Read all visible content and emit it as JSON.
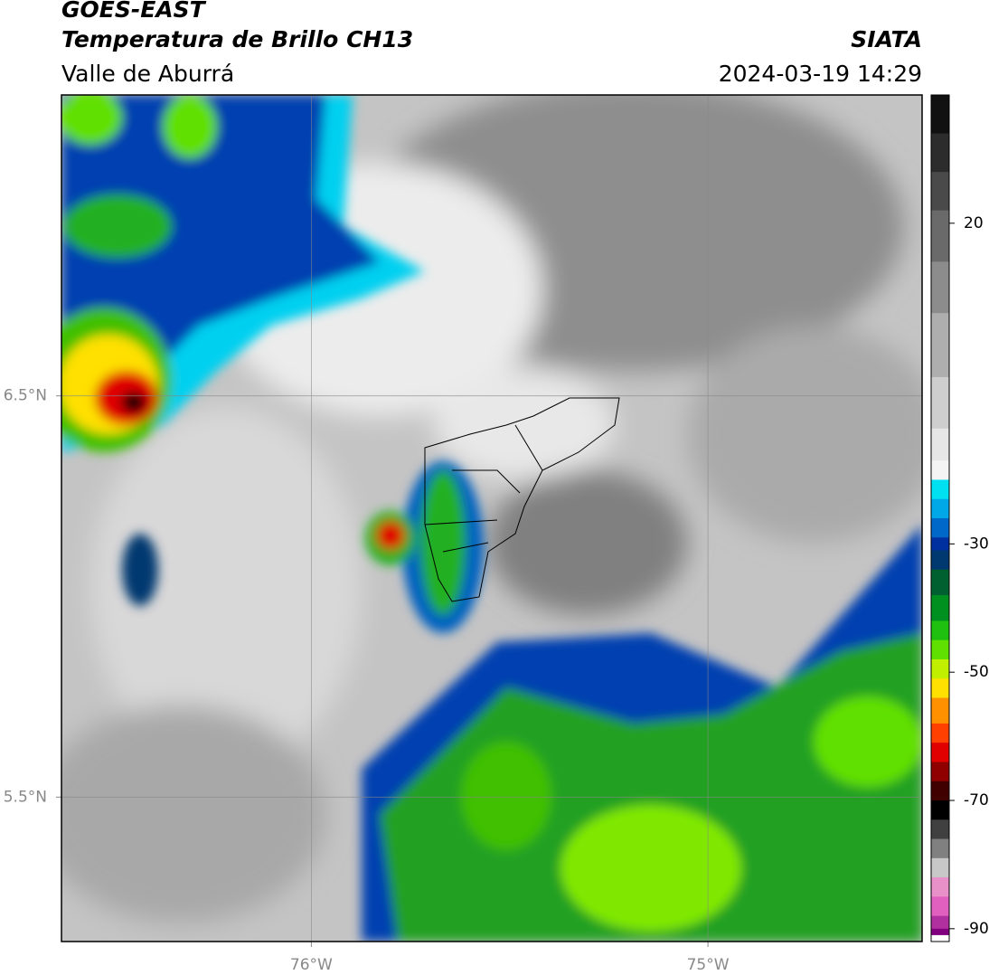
{
  "header": {
    "title": "GOES-EAST",
    "subtitle": "Temperatura de Brillo CH13",
    "region": "Valle de Aburrá",
    "source": "SIATA",
    "datetime": "2024-03-19 14:29"
  },
  "map": {
    "type": "map",
    "xlim": [
      -76.63,
      -74.46
    ],
    "ylim": [
      5.14,
      7.25
    ],
    "xticks": [
      {
        "value": -76,
        "label": "76°W"
      },
      {
        "value": -75,
        "label": "75°W"
      }
    ],
    "yticks": [
      {
        "value": 6.5,
        "label": "6.5°N"
      },
      {
        "value": 5.5,
        "label": "5.5°N"
      }
    ],
    "grid": true
  },
  "colorbar": {
    "lim": [
      -92,
      40
    ],
    "ticks": [
      20,
      -30,
      -50,
      -70,
      -90
    ],
    "colors": [
      {
        "value": 40,
        "color": "#111111"
      },
      {
        "value": 34,
        "color": "#2c2c2c"
      },
      {
        "value": 28,
        "color": "#4a4a4a"
      },
      {
        "value": 22,
        "color": "#6a6a6a"
      },
      {
        "value": 14,
        "color": "#8c8c8c"
      },
      {
        "value": 6,
        "color": "#aeaeae"
      },
      {
        "value": -4,
        "color": "#cecece"
      },
      {
        "value": -12,
        "color": "#e6e6e6"
      },
      {
        "value": -17,
        "color": "#f4f4f4"
      },
      {
        "value": -20,
        "color": "#00e0f0"
      },
      {
        "value": -23,
        "color": "#00a8e8"
      },
      {
        "value": -26,
        "color": "#0068c8"
      },
      {
        "value": -29,
        "color": "#0030a0"
      },
      {
        "value": -31,
        "color": "#003870"
      },
      {
        "value": -34,
        "color": "#006030"
      },
      {
        "value": -38,
        "color": "#009020"
      },
      {
        "value": -42,
        "color": "#20c010"
      },
      {
        "value": -45,
        "color": "#60e000"
      },
      {
        "value": -48,
        "color": "#c0f000"
      },
      {
        "value": -51,
        "color": "#ffe000"
      },
      {
        "value": -54,
        "color": "#ff9000"
      },
      {
        "value": -58,
        "color": "#ff4000"
      },
      {
        "value": -61,
        "color": "#e00000"
      },
      {
        "value": -64,
        "color": "#900000"
      },
      {
        "value": -67,
        "color": "#400000"
      },
      {
        "value": -70,
        "color": "#000000"
      },
      {
        "value": -73,
        "color": "#404040"
      },
      {
        "value": -76,
        "color": "#808080"
      },
      {
        "value": -79,
        "color": "#c8c8c8"
      },
      {
        "value": -82,
        "color": "#e890c8"
      },
      {
        "value": -85,
        "color": "#e060c0"
      },
      {
        "value": -88,
        "color": "#b030a0"
      },
      {
        "value": -90,
        "color": "#800080"
      },
      {
        "value": -91,
        "color": "#ffffff"
      }
    ]
  }
}
